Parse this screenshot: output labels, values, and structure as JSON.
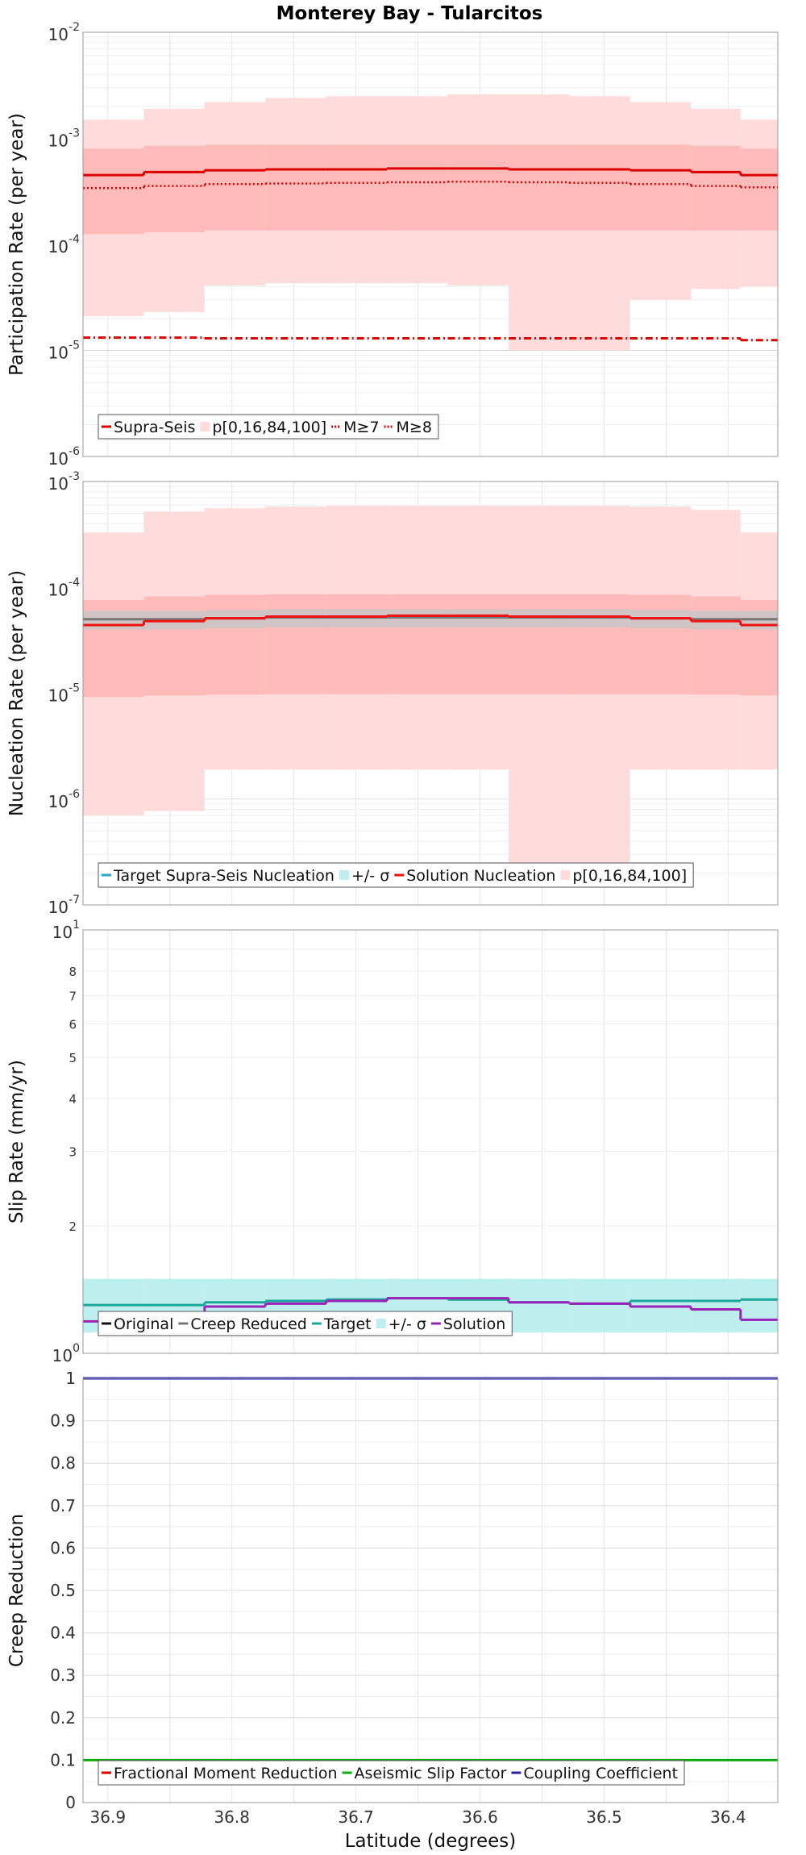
{
  "chart_data": [
    {
      "type": "line",
      "title": "Monterey Bay - Tularcitos",
      "xlabel": "Latitude (degrees)",
      "ylabel": "Participation Rate (per year)",
      "yscale": "log",
      "ylim": [
        1e-06,
        0.01
      ],
      "xlim": [
        36.92,
        36.36
      ],
      "x_ticks": [
        "36.9",
        "36.8",
        "36.7",
        "36.6",
        "36.5",
        "36.4"
      ],
      "y_ticks": [
        {
          "base": "10",
          "exp": "-6"
        },
        {
          "base": "10",
          "exp": "-5"
        },
        {
          "base": "10",
          "exp": "-4"
        },
        {
          "base": "10",
          "exp": "-3"
        },
        {
          "base": "10",
          "exp": "-2"
        }
      ],
      "segment_edges": [
        36.92,
        36.871,
        36.822,
        36.773,
        36.724,
        36.675,
        36.626,
        36.577,
        36.528,
        36.479,
        36.43,
        36.39,
        36.36
      ],
      "bands": [
        {
          "name": "p0-100",
          "color": "#ffdcdc",
          "low": [
            2.1e-05,
            2.3e-05,
            4.1e-05,
            4.3e-05,
            4.3e-05,
            4.3e-05,
            4.1e-05,
            1e-05,
            1e-05,
            3e-05,
            3.8e-05,
            4e-05
          ],
          "high": [
            0.0015,
            0.0019,
            0.0022,
            0.0024,
            0.0025,
            0.0025,
            0.0026,
            0.0026,
            0.0025,
            0.0022,
            0.0019,
            0.0015
          ]
        },
        {
          "name": "p16-84",
          "color": "#ffbaba",
          "low": [
            0.000125,
            0.00013,
            0.000135,
            0.000135,
            0.000135,
            0.000135,
            0.000135,
            0.000135,
            0.000135,
            0.000135,
            0.000135,
            0.000135
          ],
          "high": [
            0.0008,
            0.00085,
            0.00087,
            0.00087,
            0.00087,
            0.00087,
            0.00087,
            0.00087,
            0.00087,
            0.00087,
            0.00085,
            0.0008
          ]
        }
      ],
      "series": [
        {
          "name": "Supra-Seis",
          "color": "#dd0000",
          "dash": "solid",
          "values": [
            0.00045,
            0.00048,
            0.0005,
            0.00051,
            0.00051,
            0.00052,
            0.00052,
            0.00051,
            0.00051,
            0.0005,
            0.00048,
            0.00045
          ]
        },
        {
          "name": "M≥7",
          "color": "#dd0000",
          "dash": "dotted",
          "values": [
            0.00034,
            0.000355,
            0.00037,
            0.000375,
            0.00038,
            0.000385,
            0.00039,
            0.000385,
            0.00038,
            0.00037,
            0.000355,
            0.000345
          ]
        },
        {
          "name": "M≥8",
          "color": "#dd0000",
          "dash": "dashdot",
          "values": [
            1.32e-05,
            1.32e-05,
            1.3e-05,
            1.3e-05,
            1.3e-05,
            1.3e-05,
            1.3e-05,
            1.3e-05,
            1.3e-05,
            1.3e-05,
            1.3e-05,
            1.25e-05
          ]
        }
      ],
      "legend": {
        "position": "bottom-left",
        "entries": [
          {
            "label": "Supra-Seis",
            "kind": "line",
            "color": "#dd0000",
            "dash": "solid"
          },
          {
            "label": "p[0,16,84,100]",
            "kind": "patch",
            "color": "#ffdcdc"
          },
          {
            "label": "M≥7",
            "kind": "line",
            "color": "#dd0000",
            "dash": "dotted"
          },
          {
            "label": "M≥8",
            "kind": "line",
            "color": "#dd0000",
            "dash": "dashdot"
          }
        ]
      }
    },
    {
      "type": "line",
      "ylabel": "Nucleation Rate (per year)",
      "yscale": "log",
      "ylim": [
        1e-07,
        0.001
      ],
      "xlim": [
        36.92,
        36.36
      ],
      "y_ticks": [
        {
          "base": "10",
          "exp": "-7"
        },
        {
          "base": "10",
          "exp": "-6"
        },
        {
          "base": "10",
          "exp": "-5"
        },
        {
          "base": "10",
          "exp": "-4"
        },
        {
          "base": "10",
          "exp": "-3"
        }
      ],
      "segment_edges": [
        36.92,
        36.871,
        36.822,
        36.773,
        36.724,
        36.675,
        36.626,
        36.577,
        36.528,
        36.479,
        36.43,
        36.39,
        36.36
      ],
      "bands": [
        {
          "name": "p0-100",
          "color": "#ffdcdc",
          "low": [
            7e-07,
            7.7e-07,
            1.9e-06,
            1.9e-06,
            1.9e-06,
            1.9e-06,
            1.9e-06,
            2.5e-07,
            2.5e-07,
            1.9e-06,
            1.9e-06,
            1.9e-06
          ],
          "high": [
            0.00033,
            0.00052,
            0.00056,
            0.00058,
            0.00059,
            0.00059,
            0.00059,
            0.00059,
            0.00059,
            0.00058,
            0.00054,
            0.00033
          ]
        },
        {
          "name": "p16-84",
          "color": "#ffbaba",
          "low": [
            9.2e-06,
            9.5e-06,
            9.7e-06,
            9.8e-06,
            9.8e-06,
            9.8e-06,
            9.8e-06,
            9.8e-06,
            9.8e-06,
            9.8e-06,
            9.7e-06,
            9.5e-06
          ],
          "high": [
            7.6e-05,
            8.2e-05,
            8.5e-05,
            8.6e-05,
            8.6e-05,
            8.6e-05,
            8.6e-05,
            8.6e-05,
            8.6e-05,
            8.5e-05,
            8.2e-05,
            7.6e-05
          ]
        },
        {
          "name": "target-sigma",
          "color": "#aacccc",
          "opacity": 0.55,
          "low": [
            4e-05,
            4e-05,
            4.1e-05,
            4.2e-05,
            4.2e-05,
            4.2e-05,
            4.2e-05,
            4.2e-05,
            4.2e-05,
            4.1e-05,
            4e-05,
            4e-05
          ],
          "high": [
            6e-05,
            6e-05,
            6.1e-05,
            6.2e-05,
            6.2e-05,
            6.2e-05,
            6.2e-05,
            6.2e-05,
            6.2e-05,
            6.1e-05,
            6e-05,
            6e-05
          ]
        }
      ],
      "series": [
        {
          "name": "Target Supra-Seis Nucleation",
          "color": "#777777",
          "dash": "solid",
          "values": [
            5e-05,
            5e-05,
            5.1e-05,
            5.2e-05,
            5.2e-05,
            5.2e-05,
            5.2e-05,
            5.2e-05,
            5.2e-05,
            5.1e-05,
            5e-05,
            5e-05
          ]
        },
        {
          "name": "Solution Nucleation",
          "color": "#ee1111",
          "dash": "solid",
          "values": [
            4.4e-05,
            4.8e-05,
            5.1e-05,
            5.3e-05,
            5.3e-05,
            5.4e-05,
            5.4e-05,
            5.3e-05,
            5.3e-05,
            5.1e-05,
            4.8e-05,
            4.4e-05
          ]
        }
      ],
      "legend": {
        "position": "bottom-left",
        "entries": [
          {
            "label": "Target Supra-Seis Nucleation",
            "kind": "line",
            "color": "#22a8c8",
            "dash": "solid"
          },
          {
            "label": "+/- σ",
            "kind": "patch",
            "color": "#bfeeee"
          },
          {
            "label": "Solution Nucleation",
            "kind": "line",
            "color": "#ee1111",
            "dash": "solid"
          },
          {
            "label": "p[0,16,84,100]",
            "kind": "patch",
            "color": "#ffdcdc"
          }
        ]
      }
    },
    {
      "type": "line",
      "ylabel": "Slip Rate (mm/yr)",
      "yscale": "log",
      "ylim": [
        1,
        10
      ],
      "xlim": [
        36.92,
        36.36
      ],
      "y_ticks": [
        {
          "base": "10",
          "exp": "0"
        },
        {
          "base": "10",
          "exp": "1"
        }
      ],
      "y_minor_labels": [
        "2",
        "3",
        "4",
        "5",
        "6",
        "7",
        "8"
      ],
      "segment_edges": [
        36.92,
        36.871,
        36.822,
        36.773,
        36.724,
        36.675,
        36.626,
        36.577,
        36.528,
        36.479,
        36.43,
        36.39,
        36.36
      ],
      "bands": [
        {
          "name": "target-sigma",
          "color": "#bfeeee",
          "low": [
            1.12,
            1.12,
            1.12,
            1.12,
            1.12,
            1.12,
            1.12,
            1.12,
            1.12,
            1.12,
            1.12,
            1.12
          ],
          "high": [
            1.5,
            1.5,
            1.5,
            1.5,
            1.5,
            1.5,
            1.5,
            1.5,
            1.5,
            1.5,
            1.5,
            1.5
          ]
        }
      ],
      "series": [
        {
          "name": "Target",
          "color": "#1aa89a",
          "dash": "solid",
          "values": [
            1.3,
            1.3,
            1.32,
            1.33,
            1.34,
            1.35,
            1.34,
            1.32,
            1.31,
            1.33,
            1.33,
            1.34
          ]
        },
        {
          "name": "Solution",
          "color": "#9a22bb",
          "dash": "solid",
          "values": [
            1.19,
            1.24,
            1.29,
            1.31,
            1.33,
            1.35,
            1.35,
            1.32,
            1.31,
            1.29,
            1.27,
            1.2
          ]
        }
      ],
      "legend": {
        "position": "bottom-left",
        "entries": [
          {
            "label": "Original",
            "kind": "line",
            "color": "#111111",
            "dash": "solid"
          },
          {
            "label": "Creep Reduced",
            "kind": "line",
            "color": "#777777",
            "dash": "solid"
          },
          {
            "label": "Target",
            "kind": "line",
            "color": "#1aa89a",
            "dash": "solid"
          },
          {
            "label": "+/- σ",
            "kind": "patch",
            "color": "#bfeeee"
          },
          {
            "label": "Solution",
            "kind": "line",
            "color": "#9a22bb",
            "dash": "solid"
          }
        ]
      }
    },
    {
      "type": "line",
      "ylabel": "Creep Reduction",
      "yscale": "linear",
      "ylim": [
        0,
        1
      ],
      "xlim": [
        36.92,
        36.36
      ],
      "y_ticks_linear": [
        "0",
        "0.1",
        "0.2",
        "0.3",
        "0.4",
        "0.5",
        "0.6",
        "0.7",
        "0.8",
        "0.9",
        "1"
      ],
      "series": [
        {
          "name": "Aseismic Slip Factor",
          "color": "#11aa11",
          "dash": "solid",
          "constant": 0.1
        },
        {
          "name": "Coupling Coefficient",
          "color": "#2222aa",
          "dash": "solid",
          "constant": 1.0
        }
      ],
      "legend": {
        "position": "bottom-left",
        "entries": [
          {
            "label": "Fractional Moment Reduction",
            "kind": "line",
            "color": "#dd0000",
            "dash": "solid"
          },
          {
            "label": "Aseismic Slip Factor",
            "kind": "line",
            "color": "#11aa11",
            "dash": "solid"
          },
          {
            "label": "Coupling Coefficient",
            "kind": "line",
            "color": "#2222aa",
            "dash": "solid"
          }
        ]
      }
    }
  ]
}
